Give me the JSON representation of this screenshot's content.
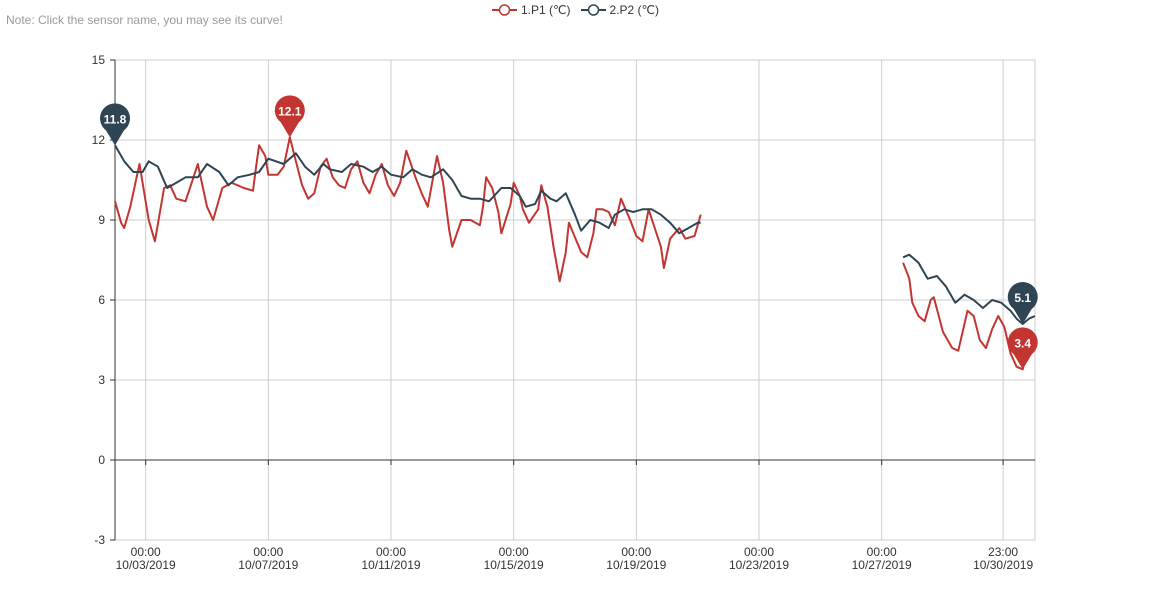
{
  "note": "Note: Click the sensor name, you may see its curve!",
  "chart_data": {
    "type": "line",
    "title": "",
    "xlabel": "",
    "ylabel": "",
    "ylim": [
      -3,
      15
    ],
    "yticks": [
      -3,
      0,
      3,
      6,
      9,
      12,
      15
    ],
    "grid": true,
    "legend_position": "top-center",
    "x_ticks": [
      {
        "x": 1,
        "time": "00:00",
        "date": "10/03/2019"
      },
      {
        "x": 5,
        "time": "00:00",
        "date": "10/07/2019"
      },
      {
        "x": 9,
        "time": "00:00",
        "date": "10/11/2019"
      },
      {
        "x": 13,
        "time": "00:00",
        "date": "10/15/2019"
      },
      {
        "x": 17,
        "time": "00:00",
        "date": "10/19/2019"
      },
      {
        "x": 21,
        "time": "00:00",
        "date": "10/23/2019"
      },
      {
        "x": 25,
        "time": "00:00",
        "date": "10/27/2019"
      },
      {
        "x": 28.96,
        "time": "23:00",
        "date": "10/30/2019"
      }
    ],
    "x_range": [
      0,
      30
    ],
    "series": [
      {
        "name": "1.P1 (℃)",
        "color": "#c23531",
        "segments": [
          [
            [
              0,
              9.7
            ],
            [
              0.2,
              8.9
            ],
            [
              0.3,
              8.7
            ],
            [
              0.5,
              9.5
            ],
            [
              0.8,
              11.1
            ],
            [
              1.1,
              9.0
            ],
            [
              1.3,
              8.2
            ],
            [
              1.6,
              10.2
            ],
            [
              1.8,
              10.3
            ],
            [
              2.0,
              9.8
            ],
            [
              2.3,
              9.7
            ],
            [
              2.5,
              10.4
            ],
            [
              2.7,
              11.1
            ],
            [
              3.0,
              9.5
            ],
            [
              3.2,
              9.0
            ],
            [
              3.5,
              10.2
            ],
            [
              3.8,
              10.4
            ],
            [
              4.2,
              10.2
            ],
            [
              4.5,
              10.1
            ],
            [
              4.6,
              11.0
            ],
            [
              4.7,
              11.8
            ],
            [
              4.9,
              11.4
            ],
            [
              5.0,
              10.7
            ],
            [
              5.3,
              10.7
            ],
            [
              5.5,
              11.0
            ],
            [
              5.7,
              12.1
            ],
            [
              5.9,
              11.2
            ],
            [
              6.1,
              10.3
            ],
            [
              6.3,
              9.8
            ],
            [
              6.5,
              10.0
            ],
            [
              6.7,
              11.0
            ],
            [
              6.9,
              11.3
            ],
            [
              7.1,
              10.6
            ],
            [
              7.3,
              10.3
            ],
            [
              7.5,
              10.2
            ],
            [
              7.7,
              10.9
            ],
            [
              7.9,
              11.2
            ],
            [
              8.1,
              10.4
            ],
            [
              8.3,
              10.0
            ],
            [
              8.5,
              10.7
            ],
            [
              8.7,
              11.1
            ],
            [
              8.9,
              10.3
            ],
            [
              9.1,
              9.9
            ],
            [
              9.3,
              10.4
            ],
            [
              9.5,
              11.6
            ],
            [
              9.8,
              10.6
            ],
            [
              10.0,
              10.0
            ],
            [
              10.2,
              9.5
            ],
            [
              10.5,
              11.4
            ],
            [
              10.7,
              10.4
            ],
            [
              10.9,
              8.6
            ],
            [
              11.0,
              8.0
            ],
            [
              11.3,
              9.0
            ],
            [
              11.6,
              9.0
            ],
            [
              11.9,
              8.8
            ],
            [
              12.0,
              9.5
            ],
            [
              12.1,
              10.6
            ],
            [
              12.3,
              10.2
            ],
            [
              12.5,
              9.3
            ],
            [
              12.6,
              8.5
            ],
            [
              12.9,
              9.6
            ],
            [
              13.0,
              10.4
            ],
            [
              13.2,
              9.9
            ],
            [
              13.3,
              9.4
            ],
            [
              13.5,
              8.9
            ],
            [
              13.8,
              9.4
            ],
            [
              13.9,
              10.3
            ],
            [
              14.1,
              9.5
            ],
            [
              14.3,
              8.0
            ],
            [
              14.5,
              6.7
            ],
            [
              14.7,
              7.8
            ],
            [
              14.8,
              8.9
            ],
            [
              15.2,
              7.8
            ],
            [
              15.4,
              7.6
            ],
            [
              15.6,
              8.5
            ],
            [
              15.7,
              9.4
            ],
            [
              15.9,
              9.4
            ],
            [
              16.1,
              9.3
            ],
            [
              16.3,
              8.8
            ],
            [
              16.5,
              9.8
            ],
            [
              16.8,
              9.0
            ],
            [
              17.0,
              8.4
            ],
            [
              17.2,
              8.2
            ],
            [
              17.4,
              9.4
            ],
            [
              17.6,
              8.7
            ],
            [
              17.8,
              8.0
            ],
            [
              17.9,
              7.2
            ],
            [
              18.1,
              8.3
            ],
            [
              18.4,
              8.7
            ],
            [
              18.6,
              8.3
            ],
            [
              18.9,
              8.4
            ],
            [
              19.1,
              9.2
            ]
          ],
          [
            [
              25.7,
              7.4
            ],
            [
              25.9,
              6.8
            ],
            [
              26.0,
              5.9
            ],
            [
              26.2,
              5.4
            ],
            [
              26.4,
              5.2
            ],
            [
              26.6,
              6.0
            ],
            [
              26.7,
              6.1
            ],
            [
              27.0,
              4.8
            ],
            [
              27.3,
              4.2
            ],
            [
              27.5,
              4.1
            ],
            [
              27.8,
              5.6
            ],
            [
              28.0,
              5.4
            ],
            [
              28.2,
              4.5
            ],
            [
              28.4,
              4.2
            ],
            [
              28.6,
              4.9
            ],
            [
              28.8,
              5.4
            ],
            [
              29.0,
              5.0
            ],
            [
              29.2,
              4.0
            ],
            [
              29.4,
              3.5
            ],
            [
              29.6,
              3.4
            ],
            [
              29.8,
              4.4
            ],
            [
              30.0,
              4.4
            ]
          ]
        ],
        "markers": [
          {
            "x": 5.7,
            "y": 12.1,
            "label": "12.1"
          },
          {
            "x": 29.6,
            "y": 3.4,
            "label": "3.4"
          }
        ]
      },
      {
        "name": "2.P2 (℃)",
        "color": "#2f4554",
        "segments": [
          [
            [
              0,
              11.8
            ],
            [
              0.3,
              11.2
            ],
            [
              0.6,
              10.8
            ],
            [
              0.9,
              10.8
            ],
            [
              1.1,
              11.2
            ],
            [
              1.4,
              11.0
            ],
            [
              1.7,
              10.2
            ],
            [
              2.0,
              10.4
            ],
            [
              2.3,
              10.6
            ],
            [
              2.7,
              10.6
            ],
            [
              3.0,
              11.1
            ],
            [
              3.4,
              10.8
            ],
            [
              3.7,
              10.3
            ],
            [
              4.0,
              10.6
            ],
            [
              4.4,
              10.7
            ],
            [
              4.7,
              10.8
            ],
            [
              5.0,
              11.3
            ],
            [
              5.5,
              11.1
            ],
            [
              5.9,
              11.5
            ],
            [
              6.2,
              11.0
            ],
            [
              6.5,
              10.7
            ],
            [
              6.8,
              11.1
            ],
            [
              7.0,
              10.9
            ],
            [
              7.4,
              10.8
            ],
            [
              7.7,
              11.1
            ],
            [
              8.1,
              11.0
            ],
            [
              8.4,
              10.8
            ],
            [
              8.7,
              11.0
            ],
            [
              9.0,
              10.7
            ],
            [
              9.4,
              10.6
            ],
            [
              9.7,
              10.9
            ],
            [
              10.0,
              10.7
            ],
            [
              10.3,
              10.6
            ],
            [
              10.7,
              10.9
            ],
            [
              11.0,
              10.5
            ],
            [
              11.3,
              9.9
            ],
            [
              11.6,
              9.8
            ],
            [
              11.9,
              9.8
            ],
            [
              12.2,
              9.7
            ],
            [
              12.6,
              10.2
            ],
            [
              12.9,
              10.2
            ],
            [
              13.2,
              9.9
            ],
            [
              13.4,
              9.5
            ],
            [
              13.7,
              9.6
            ],
            [
              13.9,
              10.1
            ],
            [
              14.2,
              9.8
            ],
            [
              14.4,
              9.7
            ],
            [
              14.7,
              10.0
            ],
            [
              15.0,
              9.2
            ],
            [
              15.2,
              8.6
            ],
            [
              15.5,
              9.0
            ],
            [
              15.8,
              8.9
            ],
            [
              16.1,
              8.7
            ],
            [
              16.3,
              9.2
            ],
            [
              16.6,
              9.4
            ],
            [
              16.9,
              9.3
            ],
            [
              17.2,
              9.4
            ],
            [
              17.5,
              9.4
            ],
            [
              17.8,
              9.2
            ],
            [
              18.1,
              8.9
            ],
            [
              18.4,
              8.5
            ],
            [
              18.7,
              8.7
            ],
            [
              19.0,
              8.9
            ],
            [
              19.1,
              8.9
            ]
          ],
          [
            [
              25.7,
              7.6
            ],
            [
              25.9,
              7.7
            ],
            [
              26.2,
              7.4
            ],
            [
              26.5,
              6.8
            ],
            [
              26.8,
              6.9
            ],
            [
              27.1,
              6.5
            ],
            [
              27.4,
              5.9
            ],
            [
              27.7,
              6.2
            ],
            [
              28.0,
              6.0
            ],
            [
              28.3,
              5.7
            ],
            [
              28.6,
              6.0
            ],
            [
              28.9,
              5.9
            ],
            [
              29.2,
              5.6
            ],
            [
              29.4,
              5.3
            ],
            [
              29.6,
              5.1
            ],
            [
              29.8,
              5.3
            ],
            [
              30.0,
              5.4
            ]
          ]
        ],
        "markers": [
          {
            "x": 0,
            "y": 11.8,
            "label": "11.8"
          },
          {
            "x": 29.6,
            "y": 5.1,
            "label": "5.1"
          }
        ]
      }
    ]
  }
}
